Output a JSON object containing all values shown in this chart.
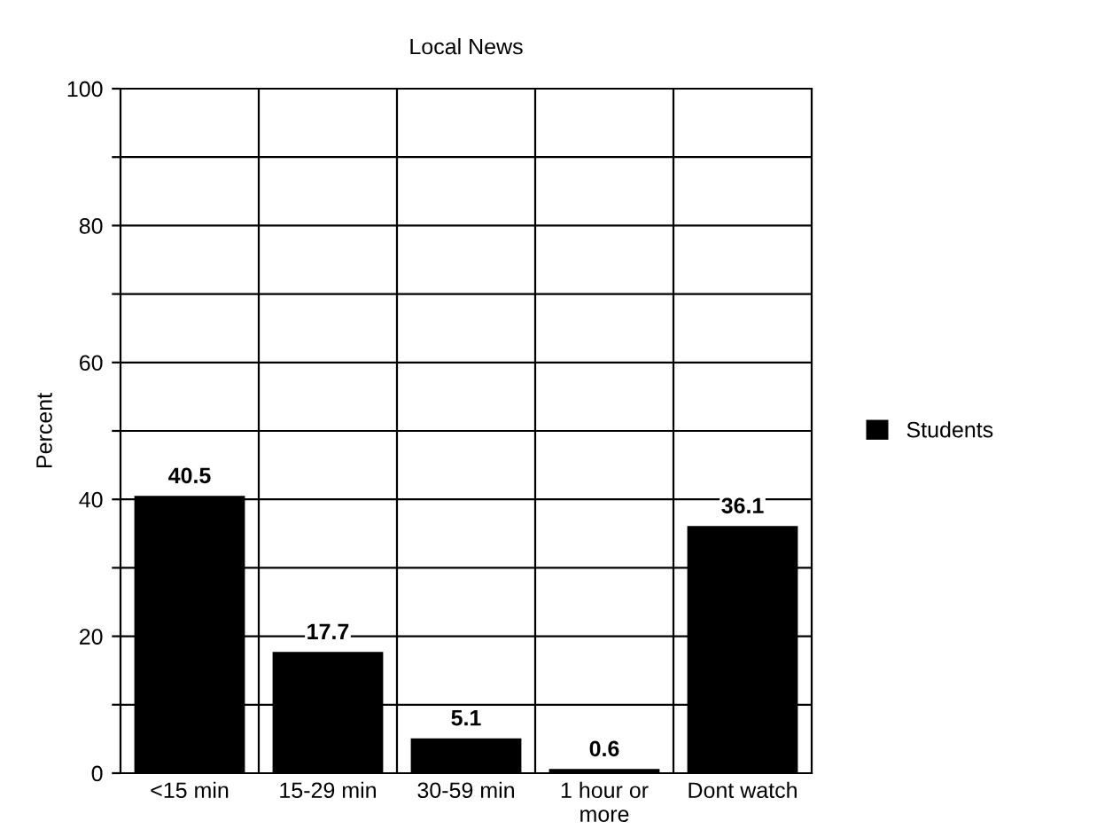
{
  "chart_data": {
    "type": "bar",
    "title": "Local News",
    "ylabel": "Percent",
    "categories": [
      "<15 min",
      "15-29 min",
      "30-59 min",
      "1 hour or\nmore",
      "Dont watch"
    ],
    "series": [
      {
        "name": "Students",
        "color": "#000000",
        "values": [
          40.5,
          17.7,
          5.1,
          0.6,
          36.1
        ]
      }
    ],
    "ylim": [
      0,
      100
    ],
    "yticks": [
      0,
      {
        "value": 10,
        "label": null
      },
      20,
      {
        "value": 30,
        "label": null
      },
      40,
      {
        "value": 50,
        "label": null
      },
      60,
      {
        "value": 70,
        "label": null
      },
      80,
      {
        "value": 90,
        "label": null
      },
      100
    ],
    "grid": true,
    "legend": "right",
    "data_labels": true
  }
}
